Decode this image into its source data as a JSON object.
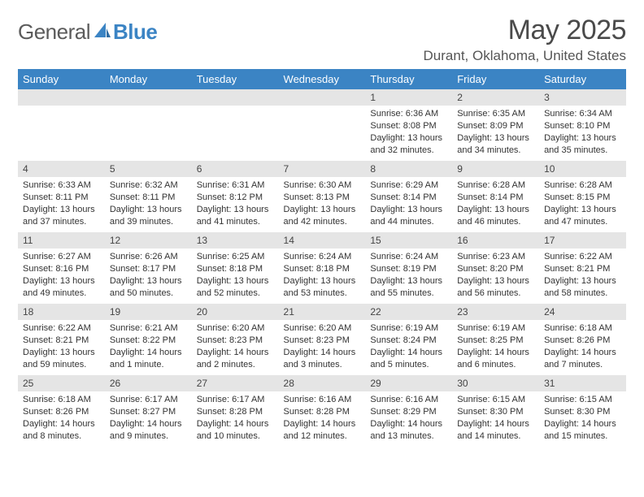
{
  "logo": {
    "part1": "General",
    "part2": "Blue"
  },
  "title": "May 2025",
  "location": "Durant, Oklahoma, United States",
  "headers": [
    "Sunday",
    "Monday",
    "Tuesday",
    "Wednesday",
    "Thursday",
    "Friday",
    "Saturday"
  ],
  "colors": {
    "header_bg": "#3b84c4",
    "daybar_bg": "#e5e5e5",
    "text": "#333333"
  },
  "weeks": [
    [
      null,
      null,
      null,
      null,
      {
        "n": "1",
        "sr": "Sunrise: 6:36 AM",
        "ss": "Sunset: 8:08 PM",
        "dl1": "Daylight: 13 hours",
        "dl2": "and 32 minutes."
      },
      {
        "n": "2",
        "sr": "Sunrise: 6:35 AM",
        "ss": "Sunset: 8:09 PM",
        "dl1": "Daylight: 13 hours",
        "dl2": "and 34 minutes."
      },
      {
        "n": "3",
        "sr": "Sunrise: 6:34 AM",
        "ss": "Sunset: 8:10 PM",
        "dl1": "Daylight: 13 hours",
        "dl2": "and 35 minutes."
      }
    ],
    [
      {
        "n": "4",
        "sr": "Sunrise: 6:33 AM",
        "ss": "Sunset: 8:11 PM",
        "dl1": "Daylight: 13 hours",
        "dl2": "and 37 minutes."
      },
      {
        "n": "5",
        "sr": "Sunrise: 6:32 AM",
        "ss": "Sunset: 8:11 PM",
        "dl1": "Daylight: 13 hours",
        "dl2": "and 39 minutes."
      },
      {
        "n": "6",
        "sr": "Sunrise: 6:31 AM",
        "ss": "Sunset: 8:12 PM",
        "dl1": "Daylight: 13 hours",
        "dl2": "and 41 minutes."
      },
      {
        "n": "7",
        "sr": "Sunrise: 6:30 AM",
        "ss": "Sunset: 8:13 PM",
        "dl1": "Daylight: 13 hours",
        "dl2": "and 42 minutes."
      },
      {
        "n": "8",
        "sr": "Sunrise: 6:29 AM",
        "ss": "Sunset: 8:14 PM",
        "dl1": "Daylight: 13 hours",
        "dl2": "and 44 minutes."
      },
      {
        "n": "9",
        "sr": "Sunrise: 6:28 AM",
        "ss": "Sunset: 8:14 PM",
        "dl1": "Daylight: 13 hours",
        "dl2": "and 46 minutes."
      },
      {
        "n": "10",
        "sr": "Sunrise: 6:28 AM",
        "ss": "Sunset: 8:15 PM",
        "dl1": "Daylight: 13 hours",
        "dl2": "and 47 minutes."
      }
    ],
    [
      {
        "n": "11",
        "sr": "Sunrise: 6:27 AM",
        "ss": "Sunset: 8:16 PM",
        "dl1": "Daylight: 13 hours",
        "dl2": "and 49 minutes."
      },
      {
        "n": "12",
        "sr": "Sunrise: 6:26 AM",
        "ss": "Sunset: 8:17 PM",
        "dl1": "Daylight: 13 hours",
        "dl2": "and 50 minutes."
      },
      {
        "n": "13",
        "sr": "Sunrise: 6:25 AM",
        "ss": "Sunset: 8:18 PM",
        "dl1": "Daylight: 13 hours",
        "dl2": "and 52 minutes."
      },
      {
        "n": "14",
        "sr": "Sunrise: 6:24 AM",
        "ss": "Sunset: 8:18 PM",
        "dl1": "Daylight: 13 hours",
        "dl2": "and 53 minutes."
      },
      {
        "n": "15",
        "sr": "Sunrise: 6:24 AM",
        "ss": "Sunset: 8:19 PM",
        "dl1": "Daylight: 13 hours",
        "dl2": "and 55 minutes."
      },
      {
        "n": "16",
        "sr": "Sunrise: 6:23 AM",
        "ss": "Sunset: 8:20 PM",
        "dl1": "Daylight: 13 hours",
        "dl2": "and 56 minutes."
      },
      {
        "n": "17",
        "sr": "Sunrise: 6:22 AM",
        "ss": "Sunset: 8:21 PM",
        "dl1": "Daylight: 13 hours",
        "dl2": "and 58 minutes."
      }
    ],
    [
      {
        "n": "18",
        "sr": "Sunrise: 6:22 AM",
        "ss": "Sunset: 8:21 PM",
        "dl1": "Daylight: 13 hours",
        "dl2": "and 59 minutes."
      },
      {
        "n": "19",
        "sr": "Sunrise: 6:21 AM",
        "ss": "Sunset: 8:22 PM",
        "dl1": "Daylight: 14 hours",
        "dl2": "and 1 minute."
      },
      {
        "n": "20",
        "sr": "Sunrise: 6:20 AM",
        "ss": "Sunset: 8:23 PM",
        "dl1": "Daylight: 14 hours",
        "dl2": "and 2 minutes."
      },
      {
        "n": "21",
        "sr": "Sunrise: 6:20 AM",
        "ss": "Sunset: 8:23 PM",
        "dl1": "Daylight: 14 hours",
        "dl2": "and 3 minutes."
      },
      {
        "n": "22",
        "sr": "Sunrise: 6:19 AM",
        "ss": "Sunset: 8:24 PM",
        "dl1": "Daylight: 14 hours",
        "dl2": "and 5 minutes."
      },
      {
        "n": "23",
        "sr": "Sunrise: 6:19 AM",
        "ss": "Sunset: 8:25 PM",
        "dl1": "Daylight: 14 hours",
        "dl2": "and 6 minutes."
      },
      {
        "n": "24",
        "sr": "Sunrise: 6:18 AM",
        "ss": "Sunset: 8:26 PM",
        "dl1": "Daylight: 14 hours",
        "dl2": "and 7 minutes."
      }
    ],
    [
      {
        "n": "25",
        "sr": "Sunrise: 6:18 AM",
        "ss": "Sunset: 8:26 PM",
        "dl1": "Daylight: 14 hours",
        "dl2": "and 8 minutes."
      },
      {
        "n": "26",
        "sr": "Sunrise: 6:17 AM",
        "ss": "Sunset: 8:27 PM",
        "dl1": "Daylight: 14 hours",
        "dl2": "and 9 minutes."
      },
      {
        "n": "27",
        "sr": "Sunrise: 6:17 AM",
        "ss": "Sunset: 8:28 PM",
        "dl1": "Daylight: 14 hours",
        "dl2": "and 10 minutes."
      },
      {
        "n": "28",
        "sr": "Sunrise: 6:16 AM",
        "ss": "Sunset: 8:28 PM",
        "dl1": "Daylight: 14 hours",
        "dl2": "and 12 minutes."
      },
      {
        "n": "29",
        "sr": "Sunrise: 6:16 AM",
        "ss": "Sunset: 8:29 PM",
        "dl1": "Daylight: 14 hours",
        "dl2": "and 13 minutes."
      },
      {
        "n": "30",
        "sr": "Sunrise: 6:15 AM",
        "ss": "Sunset: 8:30 PM",
        "dl1": "Daylight: 14 hours",
        "dl2": "and 14 minutes."
      },
      {
        "n": "31",
        "sr": "Sunrise: 6:15 AM",
        "ss": "Sunset: 8:30 PM",
        "dl1": "Daylight: 14 hours",
        "dl2": "and 15 minutes."
      }
    ]
  ]
}
